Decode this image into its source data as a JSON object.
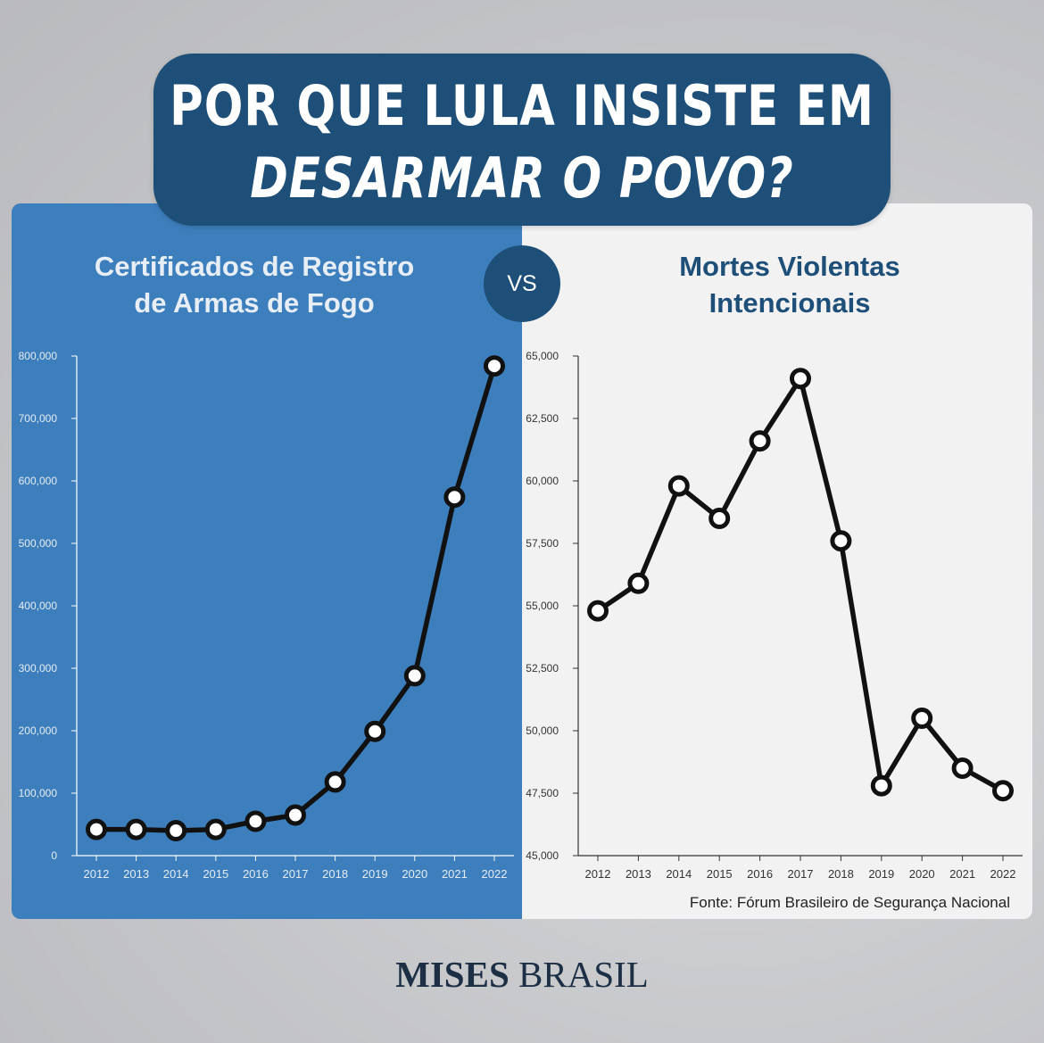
{
  "header": {
    "line1": "POR QUE LULA INSISTE EM",
    "line2": "DESARMAR O POVO?"
  },
  "vs_label": "VS",
  "source": "Fonte: Fórum Brasileiro de Segurança Nacional",
  "logo": {
    "part1": "MISES",
    "part2": "BRASIL"
  },
  "colors": {
    "header_bg": "#1e4f78",
    "left_panel": "#3d7fbd",
    "right_panel": "#f2f2f3",
    "line": "#111111",
    "marker_fill": "#ffffff"
  },
  "chart_data": [
    {
      "type": "line",
      "title": "Certificados de Registro de Armas de Fogo",
      "title_lines": [
        "Certificados de Registro",
        "de Armas de Fogo"
      ],
      "categories": [
        "2012",
        "2013",
        "2014",
        "2015",
        "2016",
        "2017",
        "2018",
        "2019",
        "2020",
        "2021",
        "2022"
      ],
      "values": [
        42000,
        42000,
        40000,
        42000,
        55000,
        65000,
        118000,
        199000,
        288000,
        574000,
        784000
      ],
      "ylim": [
        0,
        800000
      ],
      "yticks": [
        0,
        100000,
        200000,
        300000,
        400000,
        500000,
        600000,
        700000,
        800000
      ],
      "ytick_labels": [
        "0",
        "100,000",
        "200,000",
        "300,000",
        "400,000",
        "500,000",
        "600,000",
        "700,000",
        "800,000"
      ],
      "xlabel": "",
      "ylabel": ""
    },
    {
      "type": "line",
      "title": "Mortes Violentas Intencionais",
      "title_lines": [
        "Mortes Violentas",
        "Intencionais"
      ],
      "categories": [
        "2012",
        "2013",
        "2014",
        "2015",
        "2016",
        "2017",
        "2018",
        "2019",
        "2020",
        "2021",
        "2022"
      ],
      "values": [
        54800,
        55900,
        59800,
        58500,
        61600,
        64100,
        57600,
        47800,
        50500,
        48500,
        47600
      ],
      "ylim": [
        45000,
        65000
      ],
      "yticks": [
        45000,
        47500,
        50000,
        52500,
        55000,
        57500,
        60000,
        62500,
        65000
      ],
      "ytick_labels": [
        "45,000",
        "47,500",
        "50,000",
        "52,500",
        "55,000",
        "57,500",
        "60,000",
        "62,500",
        "65,000"
      ],
      "xlabel": "",
      "ylabel": ""
    }
  ]
}
